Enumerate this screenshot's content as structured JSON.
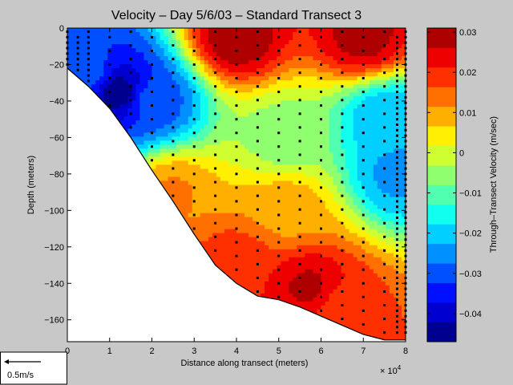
{
  "chart_data": {
    "type": "heatmap",
    "title": "Velocity – Day 5/6/03 – Standard Transect 3",
    "xlabel": "Distance along transect (meters)",
    "ylabel": "Depth (meters)",
    "x_exponent_label": "× 10",
    "x_exponent_power": "4",
    "xlim": [
      0,
      80000
    ],
    "ylim": [
      -172,
      0
    ],
    "xticks": [
      0,
      10000,
      20000,
      30000,
      40000,
      50000,
      60000,
      70000,
      80000
    ],
    "xtick_labels": [
      "0",
      "1",
      "2",
      "3",
      "4",
      "5",
      "6",
      "7",
      "8"
    ],
    "yticks": [
      0,
      -20,
      -40,
      -60,
      -80,
      -100,
      -120,
      -140,
      -160
    ],
    "ytick_labels": [
      "0",
      "−20",
      "−40",
      "−60",
      "−80",
      "−100",
      "−120",
      "−140",
      "−160"
    ],
    "colorbar": {
      "label": "Through–Transect Velocity (m/sec)",
      "range": [
        -0.047,
        0.031
      ],
      "ticks": [
        0.03,
        0.02,
        0.01,
        0,
        -0.01,
        -0.02,
        -0.03,
        -0.04
      ],
      "tick_labels": [
        "0.03",
        "0.02",
        "0.01",
        "0",
        "−0.01",
        "−0.02",
        "−0.03",
        "−0.04"
      ],
      "colors": [
        "#00008f",
        "#0000cf",
        "#0010ff",
        "#0050ff",
        "#0090ff",
        "#00cfff",
        "#10ffef",
        "#50ffaf",
        "#90ff6f",
        "#cfff30",
        "#ffef00",
        "#ffaf00",
        "#ff7000",
        "#ff3000",
        "#ef0000",
        "#af0000"
      ]
    },
    "bathymetry": [
      [
        0,
        -22
      ],
      [
        5000,
        -32
      ],
      [
        10000,
        -44
      ],
      [
        15000,
        -60
      ],
      [
        20000,
        -78
      ],
      [
        25000,
        -95
      ],
      [
        30000,
        -113
      ],
      [
        35000,
        -130
      ],
      [
        40000,
        -140
      ],
      [
        45000,
        -147
      ],
      [
        50000,
        -149
      ],
      [
        55000,
        -153
      ],
      [
        60000,
        -158
      ],
      [
        65000,
        -163
      ],
      [
        70000,
        -168
      ],
      [
        75000,
        -171
      ],
      [
        80000,
        -171
      ]
    ],
    "velocity_features": [
      {
        "x": 40000,
        "depth": -5,
        "value": 0.03
      },
      {
        "x": 70000,
        "depth": -5,
        "value": 0.028
      },
      {
        "x": 5000,
        "depth": -25,
        "value": -0.03
      },
      {
        "x": 12000,
        "depth": -35,
        "value": -0.045
      },
      {
        "x": 20000,
        "depth": -40,
        "value": -0.03
      },
      {
        "x": 75000,
        "depth": -50,
        "value": -0.022
      },
      {
        "x": 78000,
        "depth": -80,
        "value": -0.024
      },
      {
        "x": 52000,
        "depth": -60,
        "value": -0.006
      },
      {
        "x": 52000,
        "depth": -100,
        "value": 0.01
      },
      {
        "x": 57000,
        "depth": -142,
        "value": 0.027
      },
      {
        "x": 40000,
        "depth": -130,
        "value": 0.02
      },
      {
        "x": 65000,
        "depth": -155,
        "value": 0.018
      },
      {
        "x": 25000,
        "depth": -90,
        "value": 0.012
      }
    ],
    "sample_columns_x": [
      0,
      2500,
      5000,
      10000,
      15000,
      20000,
      25000,
      30000,
      35000,
      40000,
      45000,
      50000,
      55000,
      60000,
      65000,
      70000,
      75000,
      78000,
      80000
    ],
    "scale_arrow_label": "0.5m/s"
  }
}
